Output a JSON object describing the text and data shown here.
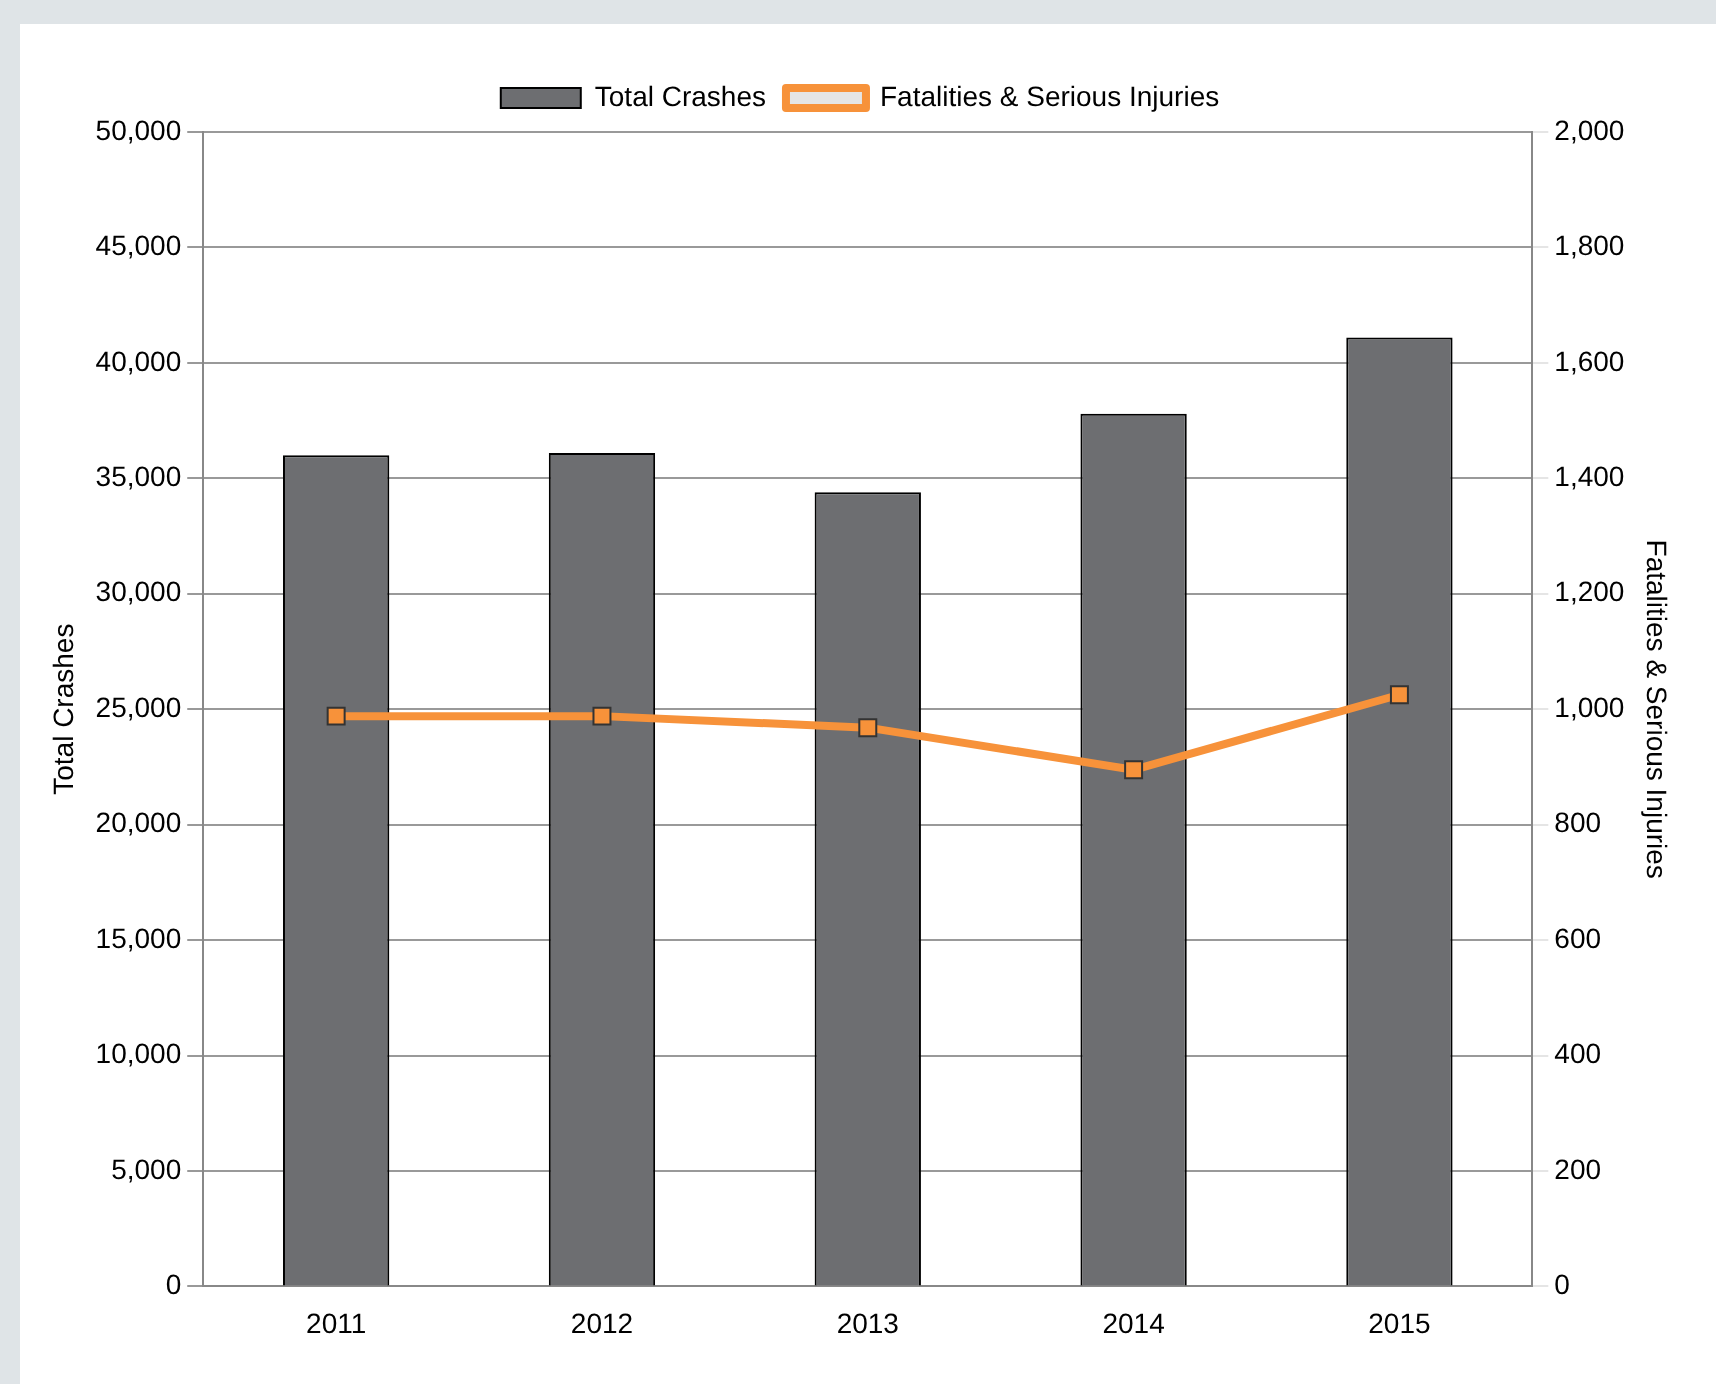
{
  "chart_data": {
    "type": "bar",
    "categories": [
      "2011",
      "2012",
      "2013",
      "2014",
      "2015"
    ],
    "series": [
      {
        "name": "Total Crashes",
        "color": "#6d6e71",
        "values": [
          36000,
          36100,
          34400,
          37800,
          41100
        ]
      },
      {
        "name": "Fatalities & Serious Injuries",
        "type": "line",
        "axis": "y2",
        "color": "#f7923a",
        "marker": "square",
        "values": [
          988,
          988,
          968,
          895,
          1025
        ]
      }
    ],
    "ylabel": "Total Crashes",
    "y2label": "Fatalities & Serious Injuries",
    "ylim": [
      0,
      50000
    ],
    "yticks": [
      0,
      {
        "value": 5000,
        "label": "5,000"
      },
      {
        "value": 10000,
        "label": "10,000"
      },
      {
        "value": 15000,
        "label": "15,000"
      },
      {
        "value": 20000,
        "label": "20,000"
      },
      {
        "value": 25000,
        "label": "25,000"
      },
      {
        "value": 30000,
        "label": "30,000"
      },
      {
        "value": 35000,
        "label": "35,000"
      },
      {
        "value": 40000,
        "label": "40,000"
      },
      {
        "value": 45000,
        "label": "45,000"
      },
      {
        "value": 50000,
        "label": "50,000"
      }
    ],
    "y2lim": [
      0,
      2000
    ],
    "y2ticks": [
      0,
      200,
      400,
      600,
      800,
      {
        "value": 1000,
        "label": "1,000"
      },
      {
        "value": 1200,
        "label": "1,200"
      },
      {
        "value": 1400,
        "label": "1,400"
      },
      {
        "value": 1600,
        "label": "1,600"
      },
      {
        "value": 1800,
        "label": "1,800"
      },
      {
        "value": 2000,
        "label": "2,000"
      }
    ],
    "grid": "y",
    "legend": "top"
  }
}
